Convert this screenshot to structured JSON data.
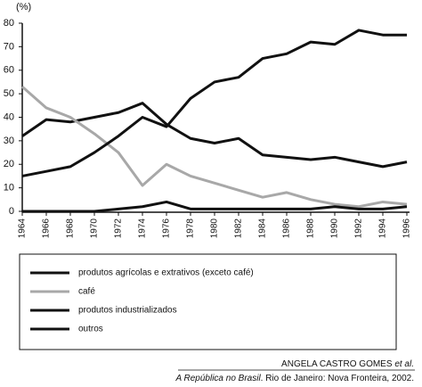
{
  "chart_data": {
    "type": "line",
    "y_unit_label": "(%)",
    "x": [
      1964,
      1966,
      1968,
      1970,
      1972,
      1974,
      1976,
      1978,
      1980,
      1982,
      1984,
      1986,
      1988,
      1990,
      1992,
      1994,
      1996
    ],
    "xlim": [
      1964,
      1996
    ],
    "xticks": [
      1964,
      1966,
      1968,
      1970,
      1972,
      1974,
      1976,
      1978,
      1980,
      1982,
      1984,
      1986,
      1988,
      1990,
      1992,
      1994,
      1996
    ],
    "ylim": [
      0,
      80
    ],
    "yticks": [
      0,
      10,
      20,
      30,
      40,
      50,
      60,
      70,
      80
    ],
    "grid": false,
    "series": [
      {
        "name": "produtos agrícolas e extrativos (exceto café)",
        "color": "#111111",
        "values": [
          32,
          39,
          38,
          40,
          42,
          46,
          37,
          31,
          29,
          31,
          24,
          23,
          22,
          23,
          21,
          19,
          21
        ]
      },
      {
        "name": "café",
        "color": "#a8a8a8",
        "values": [
          53,
          44,
          40,
          33,
          25,
          11,
          20,
          15,
          12,
          9,
          6,
          8,
          5,
          3,
          2,
          4,
          3
        ]
      },
      {
        "name": "produtos industrializados",
        "color": "#111111",
        "values": [
          15,
          17,
          19,
          25,
          32,
          40,
          36,
          48,
          55,
          57,
          65,
          67,
          72,
          71,
          77,
          75,
          75
        ]
      },
      {
        "name": "outros",
        "color": "#111111",
        "values": [
          0,
          0,
          0,
          0,
          1,
          2,
          4,
          1,
          1,
          1,
          1,
          1,
          1,
          2,
          1,
          1,
          2
        ]
      }
    ],
    "source_author": "ANGELA CASTRO GOMES",
    "source_etal": "et al.",
    "source_title": "A República no Brasil",
    "source_rest": ". Rio de Janeiro: Nova Fronteira, 2002."
  }
}
